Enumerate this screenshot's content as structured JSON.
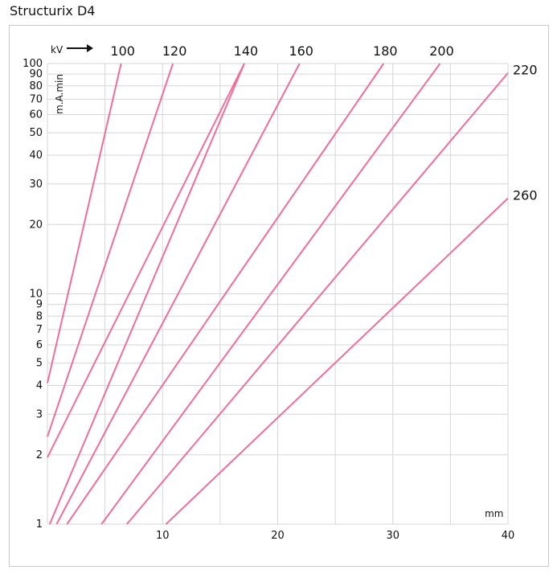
{
  "title": "Structurix D4",
  "colors": {
    "curve": "#f06e97",
    "grid": "#d6d6d6",
    "frame": "#c9c9c9"
  },
  "chart_data": {
    "type": "line",
    "xscale": "linear",
    "yscale": "log",
    "xlabel": "mm",
    "ylabel": "m.A.min",
    "series_label": "kV",
    "xlim": [
      0,
      40
    ],
    "ylim": [
      1,
      100
    ],
    "xticks": [
      10,
      20,
      30,
      40
    ],
    "yticks": [
      1,
      2,
      3,
      4,
      5,
      6,
      7,
      8,
      9,
      10,
      20,
      30,
      40,
      50,
      60,
      70,
      80,
      90,
      100
    ],
    "grid": true,
    "series": [
      {
        "name": "100",
        "x": [
          0,
          6.4
        ],
        "y": [
          4.1,
          100
        ]
      },
      {
        "name": "120",
        "x": [
          0,
          10.9
        ],
        "y": [
          2.4,
          100
        ]
      },
      {
        "name": "140",
        "x": [
          0.2,
          17.1
        ],
        "y": [
          1,
          100
        ]
      },
      {
        "name": "160",
        "x": [
          0.8,
          21.9
        ],
        "y": [
          1,
          100
        ]
      },
      {
        "name": "180",
        "x": [
          1.7,
          29.2
        ],
        "y": [
          1,
          100
        ]
      },
      {
        "name": "200",
        "x": [
          4.7,
          34.1
        ],
        "y": [
          1,
          100
        ]
      },
      {
        "name": "220",
        "x": [
          6.9,
          40
        ],
        "y": [
          1,
          91
        ]
      },
      {
        "name": "260",
        "x": [
          10.3,
          40
        ],
        "y": [
          1,
          26
        ]
      }
    ],
    "extra_series": [
      {
        "x": [
          0,
          17.1
        ],
        "y": [
          1.95,
          100
        ]
      }
    ]
  }
}
